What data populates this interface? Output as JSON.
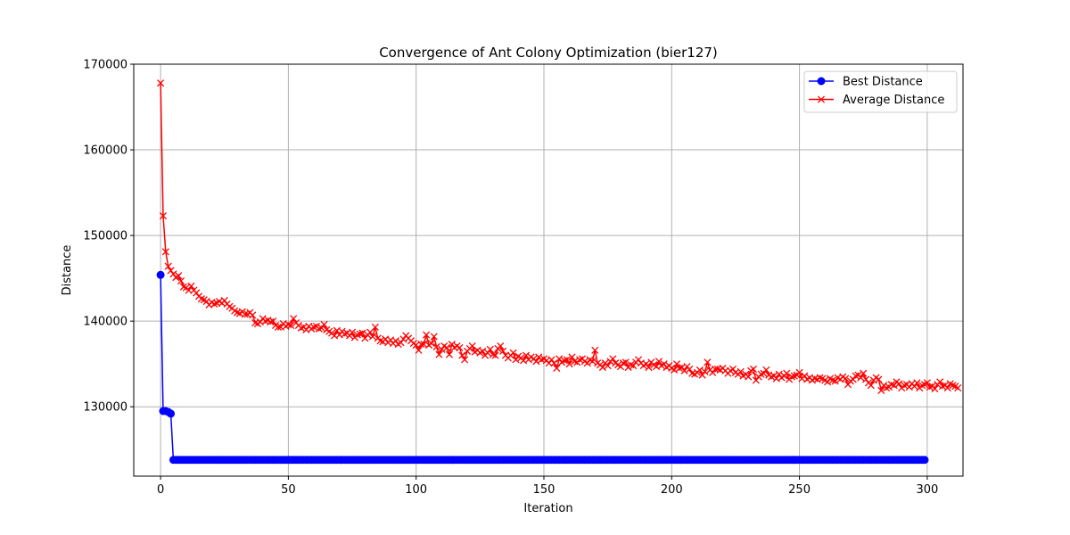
{
  "chart_data": {
    "type": "line",
    "title": "Convergence of Ant Colony Optimization (bier127)",
    "xlabel": "Iteration",
    "ylabel": "Distance",
    "xlim": [
      -10.5,
      314
    ],
    "ylim": [
      121900,
      170000
    ],
    "xticks": [
      0,
      50,
      100,
      150,
      200,
      250,
      300
    ],
    "yticks": [
      130000,
      140000,
      150000,
      160000,
      170000
    ],
    "grid": true,
    "legend_position": "top-right",
    "series": [
      {
        "name": "Best Distance",
        "color": "#0000ff",
        "marker": "circle",
        "x_start": 0,
        "x_step": 1,
        "values": [
          145400,
          129500,
          129500,
          129400,
          129200,
          123800,
          123800,
          123800,
          123800,
          123800,
          123800,
          123800,
          123800,
          123800,
          123800,
          123800,
          123800,
          123800,
          123800,
          123800,
          123800,
          123800,
          123800,
          123800,
          123800,
          123800,
          123800,
          123800,
          123800,
          123800,
          123800,
          123800,
          123800,
          123800,
          123800,
          123800,
          123800,
          123800,
          123800,
          123800,
          123800,
          123800,
          123800,
          123800,
          123800,
          123800,
          123800,
          123800,
          123800,
          123800,
          123800,
          123800,
          123800,
          123800,
          123800,
          123800,
          123800,
          123800,
          123800,
          123800,
          123800,
          123800,
          123800,
          123800,
          123800,
          123800,
          123800,
          123800,
          123800,
          123800,
          123800,
          123800,
          123800,
          123800,
          123800,
          123800,
          123800,
          123800,
          123800,
          123800,
          123800,
          123800,
          123800,
          123800,
          123800,
          123800,
          123800,
          123800,
          123800,
          123800,
          123800,
          123800,
          123800,
          123800,
          123800,
          123800,
          123800,
          123800,
          123800,
          123800,
          123800,
          123800,
          123800,
          123800,
          123800,
          123800,
          123800,
          123800,
          123800,
          123800,
          123800,
          123800,
          123800,
          123800,
          123800,
          123800,
          123800,
          123800,
          123800,
          123800,
          123800,
          123800,
          123800,
          123800,
          123800,
          123800,
          123800,
          123800,
          123800,
          123800,
          123800,
          123800,
          123800,
          123800,
          123800,
          123800,
          123800,
          123800,
          123800,
          123800,
          123800,
          123800,
          123800,
          123800,
          123800,
          123800,
          123800,
          123800,
          123800,
          123800,
          123800,
          123800,
          123800,
          123800,
          123800,
          123800,
          123800,
          123800,
          123800,
          123800,
          123800,
          123800,
          123800,
          123800,
          123800,
          123800,
          123800,
          123800,
          123800,
          123800,
          123800,
          123800,
          123800,
          123800,
          123800,
          123800,
          123800,
          123800,
          123800,
          123800,
          123800,
          123800,
          123800,
          123800,
          123800,
          123800,
          123800,
          123800,
          123800,
          123800,
          123800,
          123800,
          123800,
          123800,
          123800,
          123800,
          123800,
          123800,
          123800,
          123800,
          123800,
          123800,
          123800,
          123800,
          123800,
          123800,
          123800,
          123800,
          123800,
          123800,
          123800,
          123800,
          123800,
          123800,
          123800,
          123800,
          123800,
          123800,
          123800,
          123800,
          123800,
          123800,
          123800,
          123800,
          123800,
          123800,
          123800,
          123800,
          123800,
          123800,
          123800,
          123800,
          123800,
          123800,
          123800,
          123800,
          123800,
          123800,
          123800,
          123800,
          123800,
          123800,
          123800,
          123800,
          123800,
          123800,
          123800,
          123800,
          123800,
          123800,
          123800,
          123800,
          123800,
          123800,
          123800,
          123800,
          123800,
          123800,
          123800,
          123800,
          123800,
          123800,
          123800,
          123800,
          123800,
          123800,
          123800,
          123800,
          123800,
          123800,
          123800,
          123800,
          123800,
          123800,
          123800,
          123800,
          123800,
          123800,
          123800,
          123800,
          123800,
          123800,
          123800,
          123800,
          123800,
          123800,
          123800,
          123800,
          123800,
          123800,
          123800,
          123800,
          123800,
          123800,
          123800,
          123800,
          123800,
          123800,
          123800,
          123800
        ]
      },
      {
        "name": "Average Distance",
        "color": "#ff0000",
        "marker": "x",
        "x_start": 0,
        "x_step": 1,
        "values": [
          167800,
          152300,
          148100,
          146400,
          145900,
          145500,
          145100,
          145300,
          144700,
          144000,
          143900,
          143600,
          144100,
          143600,
          143300,
          142900,
          142600,
          142500,
          142300,
          141900,
          142200,
          142000,
          142100,
          142300,
          142100,
          142400,
          142000,
          141700,
          141500,
          141200,
          141000,
          140900,
          141100,
          140800,
          140800,
          141000,
          140700,
          139800,
          139700,
          139900,
          140300,
          140000,
          140100,
          139900,
          140000,
          139500,
          139300,
          139300,
          139700,
          139400,
          139600,
          139500,
          140300,
          139800,
          139500,
          139200,
          139300,
          139000,
          139400,
          139100,
          139300,
          139400,
          139100,
          139200,
          139600,
          139000,
          138800,
          138600,
          138300,
          138900,
          138400,
          138800,
          138500,
          138600,
          138300,
          138700,
          138100,
          138400,
          138500,
          138600,
          138000,
          138400,
          138700,
          138200,
          139300,
          138000,
          137700,
          137600,
          137900,
          137500,
          137800,
          137400,
          137700,
          137300,
          137500,
          137900,
          138300,
          138000,
          137700,
          137400,
          137200,
          136600,
          137300,
          137300,
          138400,
          137200,
          137400,
          138200,
          137000,
          136100,
          136700,
          137100,
          136900,
          136100,
          137300,
          136900,
          137100,
          136900,
          136000,
          135500,
          136500,
          136800,
          137100,
          136400,
          136600,
          136300,
          136500,
          136000,
          136300,
          136700,
          136100,
          136000,
          136800,
          137100,
          136500,
          136000,
          135700,
          136000,
          136300,
          135500,
          135900,
          135700,
          135400,
          136000,
          135500,
          135800,
          135600,
          135300,
          135800,
          135500,
          135600,
          135400,
          135100,
          135500,
          135100,
          134500,
          135600,
          135200,
          135400,
          135500,
          135000,
          135800,
          135300,
          135200,
          135500,
          135600,
          135300,
          135100,
          135500,
          135300,
          136600,
          135100,
          134900,
          134600,
          135100,
          134800,
          135300,
          135600,
          135100,
          134900,
          134700,
          135100,
          135200,
          134600,
          134900,
          134800,
          135200,
          135500,
          135100,
          134800,
          135000,
          134600,
          135200,
          134900,
          134700,
          135300,
          134800,
          135000,
          134600,
          134800,
          134500,
          134300,
          135000,
          134500,
          134600,
          134200,
          134700,
          134400,
          133900,
          133800,
          134000,
          134300,
          133700,
          134100,
          135200,
          134300,
          134000,
          134400,
          134400,
          134300,
          134500,
          134200,
          133900,
          134200,
          134400,
          134000,
          133800,
          134100,
          133600,
          133800,
          133500,
          134200,
          134400,
          133100,
          133500,
          133800,
          133900,
          134300,
          133700,
          133500,
          133600,
          133300,
          133800,
          133400,
          133600,
          133900,
          133200,
          133500,
          133600,
          133700,
          134000,
          133300,
          133600,
          133200,
          133400,
          133100,
          133300,
          133200,
          133400,
          133300,
          133100,
          132900,
          133300,
          133100,
          133000,
          133400,
          133200,
          133500,
          133300,
          132600,
          133000,
          133200,
          133600,
          133700,
          133400,
          133900,
          133200,
          132800,
          132500,
          133100,
          133400,
          133200,
          131900,
          132500,
          132200,
          132300,
          132600,
          132500,
          132900,
          132700,
          132200,
          132500,
          132600,
          132300,
          132700,
          132400,
          132800,
          132200,
          132500,
          132600,
          132800,
          132300,
          132400,
          132100,
          132600,
          132900,
          132400,
          132500,
          132200,
          132700,
          132500,
          132400,
          132200
        ]
      }
    ]
  }
}
